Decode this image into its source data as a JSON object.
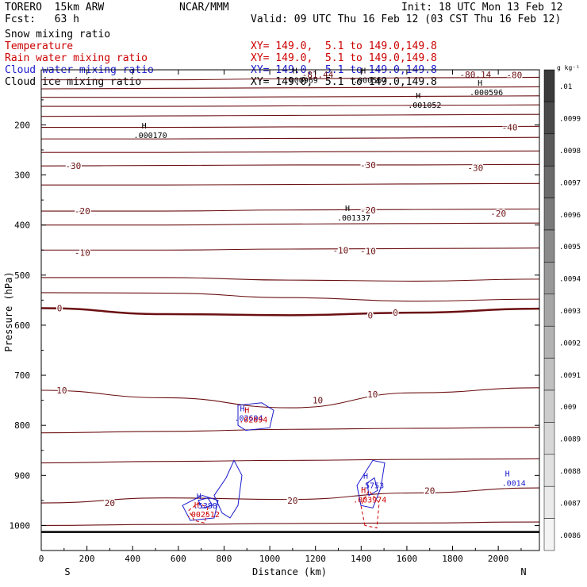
{
  "header": {
    "model": "TORERO  15km ARW",
    "org": "NCAR/MMM",
    "init": "Init: 18 UTC Mon 13 Feb 12",
    "fcst": "Fcst:   63 h",
    "valid": "Valid: 09 UTC Thu 16 Feb 12 (03 CST Thu 16 Feb 12)"
  },
  "fields": [
    {
      "name": "Snow mixing ratio",
      "xy": "",
      "color": "#000000"
    },
    {
      "name": "Temperature",
      "xy": "XY= 149.0,  5.1 to 149.0,149.8",
      "color": "#cc0000"
    },
    {
      "name": "Rain water mixing ratio",
      "xy": "XY= 149.0,  5.1 to 149.0,149.8",
      "color": "#cc0000"
    },
    {
      "name": "Cloud water mixing ratio",
      "xy": "XY= 149.0,  5.1 to 149.0,149.8",
      "color": "#1a1acc"
    },
    {
      "name": "Cloud ice mixing ratio",
      "xy": "XY= 149.0,  5.1 to 149.0,149.8",
      "color": "#000000"
    }
  ],
  "chart_data": {
    "type": "cross-section contour",
    "xlabel": "Distance (km)",
    "ylabel": "Pressure (hPa)",
    "xlim": [
      0,
      2180
    ],
    "ylim": [
      1050,
      90
    ],
    "x_ticks": [
      0,
      200,
      400,
      600,
      800,
      1000,
      1200,
      1400,
      1600,
      1800,
      2000
    ],
    "y_ticks": [
      200,
      300,
      400,
      500,
      600,
      700,
      800,
      900,
      1000
    ],
    "x_end_labels": {
      "left": "S",
      "right": "N"
    },
    "colorbar": {
      "unit": "g kg⁻¹",
      "labels": [
        ".01",
        ".0099",
        ".0098",
        ".0097",
        ".0096",
        ".0095",
        ".0094",
        ".0093",
        ".0092",
        ".0091",
        ".009",
        ".0089",
        ".0088",
        ".0087",
        ".0086"
      ],
      "shades": [
        "#3a3a3a",
        "#4a4a4a",
        "#5a5a5a",
        "#6b6b6b",
        "#7a7a7a",
        "#8a8a8a",
        "#989898",
        "#a6a6a6",
        "#b3b3b3",
        "#c0c0c0",
        "#cccccc",
        "#d7d7d7",
        "#e1e1e1",
        "#ebebeb",
        "#f4f4f4"
      ]
    },
    "temperature_contours": [
      {
        "label": "-80",
        "pressure": [
          110,
          110,
          108,
          106,
          105
        ],
        "positions": [
          [
            2070,
            100
          ]
        ]
      },
      {
        "label": "",
        "pressure": [
          128,
          127,
          126,
          125,
          124
        ]
      },
      {
        "label": "",
        "pressure": [
          145,
          145,
          144,
          143,
          142
        ]
      },
      {
        "label": "",
        "pressure": [
          163,
          163,
          162,
          161,
          160
        ]
      },
      {
        "label": "",
        "pressure": [
          183,
          182,
          181,
          180,
          179
        ]
      },
      {
        "label": "-40",
        "pressure": [
          205,
          205,
          204,
          204,
          203
        ],
        "positions": [
          [
            2050,
            205
          ]
        ]
      },
      {
        "label": "",
        "pressure": [
          228,
          228,
          227,
          226,
          225
        ]
      },
      {
        "label": "",
        "pressure": [
          255,
          255,
          254,
          253,
          252
        ]
      },
      {
        "label": "-30",
        "pressure": [
          282,
          281,
          280,
          280,
          279
        ],
        "positions": [
          [
            140,
            282
          ],
          [
            1430,
            280
          ],
          [
            1900,
            286
          ]
        ]
      },
      {
        "label": "",
        "pressure": [
          320,
          320,
          319,
          318,
          317
        ]
      },
      {
        "label": "-20",
        "pressure": [
          372,
          372,
          370,
          369,
          368
        ],
        "positions": [
          [
            180,
            372
          ],
          [
            1430,
            370
          ],
          [
            2000,
            377
          ]
        ]
      },
      {
        "label": "",
        "pressure": [
          400,
          400,
          398,
          397,
          396
        ]
      },
      {
        "label": "-10",
        "pressure": [
          450,
          450,
          448,
          447,
          446
        ],
        "positions": [
          [
            180,
            455
          ],
          [
            1310,
            450
          ],
          [
            1430,
            452
          ]
        ]
      },
      {
        "label": "",
        "pressure": [
          505,
          505,
          510,
          512,
          508
        ]
      },
      {
        "label": "",
        "pressure": [
          535,
          536,
          545,
          552,
          548
        ]
      },
      {
        "label": "0",
        "pressure": [
          566,
          578,
          580,
          575,
          567
        ],
        "bold": true,
        "positions": [
          [
            80,
            566
          ],
          [
            1440,
            580
          ],
          [
            1550,
            575
          ]
        ]
      },
      {
        "label": "10",
        "pressure": [
          730,
          745,
          765,
          735,
          725
        ],
        "positions": [
          [
            90,
            730
          ],
          [
            1210,
            750
          ],
          [
            1450,
            738
          ]
        ]
      },
      {
        "label": "",
        "pressure": [
          815,
          812,
          808,
          806,
          804
        ]
      },
      {
        "label": "",
        "pressure": [
          875,
          872,
          870,
          868,
          867
        ]
      },
      {
        "label": "20",
        "pressure": [
          955,
          945,
          948,
          935,
          925
        ],
        "positions": [
          [
            300,
            955
          ],
          [
            1100,
            950
          ],
          [
            1700,
            930
          ]
        ]
      },
      {
        "label": "",
        "pressure": [
          1000,
          998,
          996,
          995,
          993
        ]
      }
    ],
    "cloud_water_maxima": [
      {
        "label": "H",
        "value": ".5388",
        "distance": 690,
        "pressure": 950
      },
      {
        "label": "H",
        "value": ".5753",
        "distance": 1420,
        "pressure": 910
      },
      {
        "label": "H",
        "value": ".0014",
        "distance": 2040,
        "pressure": 905
      },
      {
        "label": "H",
        "value": ".02694",
        "distance": 880,
        "pressure": 775
      }
    ],
    "rain_water_maxima": [
      {
        "label": "H",
        "value": ".002512",
        "distance": 680,
        "pressure": 968
      },
      {
        "label": "H",
        "value": ".003974",
        "distance": 1410,
        "pressure": 938
      },
      {
        "label": "H",
        "value": ".02694",
        "distance": 900,
        "pressure": 778
      }
    ],
    "cloud_ice_maxima": [
      {
        "label": "H",
        "value": ".000170",
        "distance": 450,
        "pressure": 210
      },
      {
        "label": "H",
        "value": ".001337",
        "distance": 1340,
        "pressure": 375
      },
      {
        "label": "H",
        "value": ".001052",
        "distance": 1650,
        "pressure": 150
      },
      {
        "label": "H",
        "value": ".000596",
        "distance": 1920,
        "pressure": 125
      },
      {
        "label": "H",
        "value": ".000969",
        "distance": 1110,
        "pressure": 100
      },
      {
        "label": "H",
        "value": ".000567",
        "distance": 1410,
        "pressure": 100
      }
    ],
    "overlap_labels": [
      {
        "text": "-81.44",
        "distance": 1210,
        "pressure": 90
      },
      {
        "text": "-80.14",
        "distance": 1900,
        "pressure": 90
      }
    ]
  }
}
